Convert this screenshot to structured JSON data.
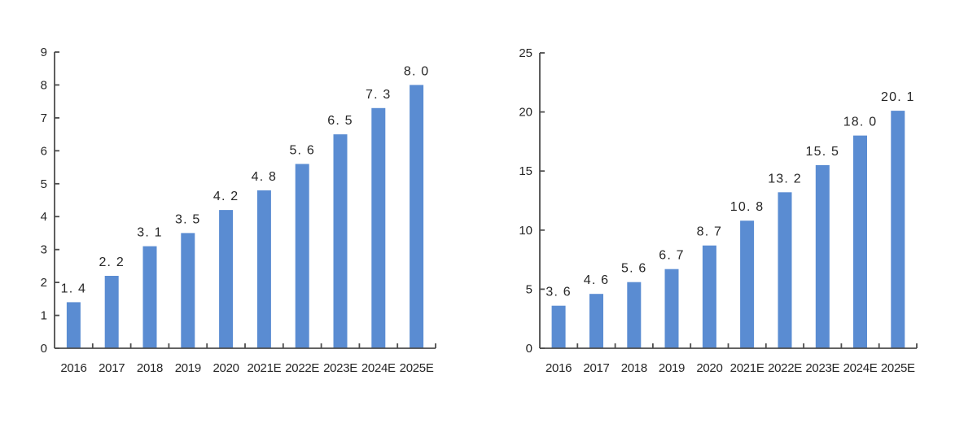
{
  "figure": {
    "background": "#ffffff",
    "title": ""
  },
  "colors": {
    "bar": "#5A8CD2",
    "axis": "#4d4d4d",
    "text": "#262626"
  },
  "chart_data": [
    {
      "id": "left-bar-chart",
      "type": "bar",
      "title": "",
      "xlabel": "",
      "ylabel": "",
      "categories": [
        "2016",
        "2017",
        "2018",
        "2019",
        "2020",
        "2021E",
        "2022E",
        "2023E",
        "2024E",
        "2025E"
      ],
      "values": [
        1.4,
        2.2,
        3.1,
        3.5,
        4.2,
        4.8,
        5.6,
        6.5,
        7.3,
        8.0
      ],
      "data_labels": [
        "1. 4",
        "2. 2",
        "3. 1",
        "3. 5",
        "4. 2",
        "4. 8",
        "5. 6",
        "6. 5",
        "7. 3",
        "8. 0"
      ],
      "ylim": [
        0,
        9
      ],
      "yticks": [
        0,
        1,
        2,
        3,
        4,
        5,
        6,
        7,
        8,
        9
      ],
      "grid": false,
      "legend": null,
      "tick_style": "inside"
    },
    {
      "id": "right-bar-chart",
      "type": "bar",
      "title": "",
      "xlabel": "",
      "ylabel": "",
      "categories": [
        "2016",
        "2017",
        "2018",
        "2019",
        "2020",
        "2021E",
        "2022E",
        "2023E",
        "2024E",
        "2025E"
      ],
      "values": [
        3.6,
        4.6,
        5.6,
        6.7,
        8.7,
        10.8,
        13.2,
        15.5,
        18.0,
        20.1
      ],
      "data_labels": [
        "3. 6",
        "4. 6",
        "5. 6",
        "6. 7",
        "8. 7",
        "10. 8",
        "13. 2",
        "15. 5",
        "18. 0",
        "20. 1"
      ],
      "ylim": [
        0,
        25
      ],
      "yticks": [
        0,
        5,
        10,
        15,
        20,
        25
      ],
      "grid": false,
      "legend": null,
      "tick_style": "inside"
    }
  ]
}
